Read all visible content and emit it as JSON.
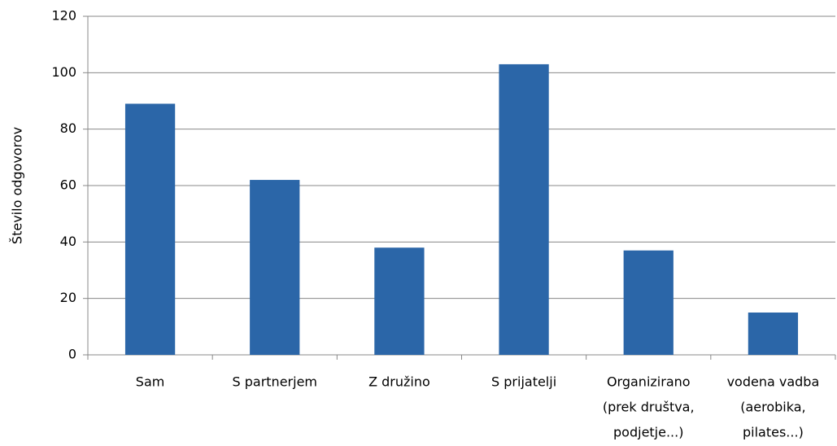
{
  "chart_data": {
    "type": "bar",
    "y_label": "Število odgovorov",
    "categories": [
      [
        "Sam"
      ],
      [
        "S partnerjem"
      ],
      [
        "Z družino"
      ],
      [
        "S prijatelji"
      ],
      [
        "Organizirano",
        "(prek društva,",
        "podjetje...)"
      ],
      [
        "vodena vadba",
        "(aerobika,",
        "pilates...)"
      ]
    ],
    "values": [
      89,
      62,
      38,
      103,
      37,
      15
    ],
    "color": "#2b66a8",
    "ylim": [
      0,
      120
    ],
    "yticks": [
      0,
      20,
      40,
      60,
      80,
      100,
      120
    ],
    "grid": true
  }
}
